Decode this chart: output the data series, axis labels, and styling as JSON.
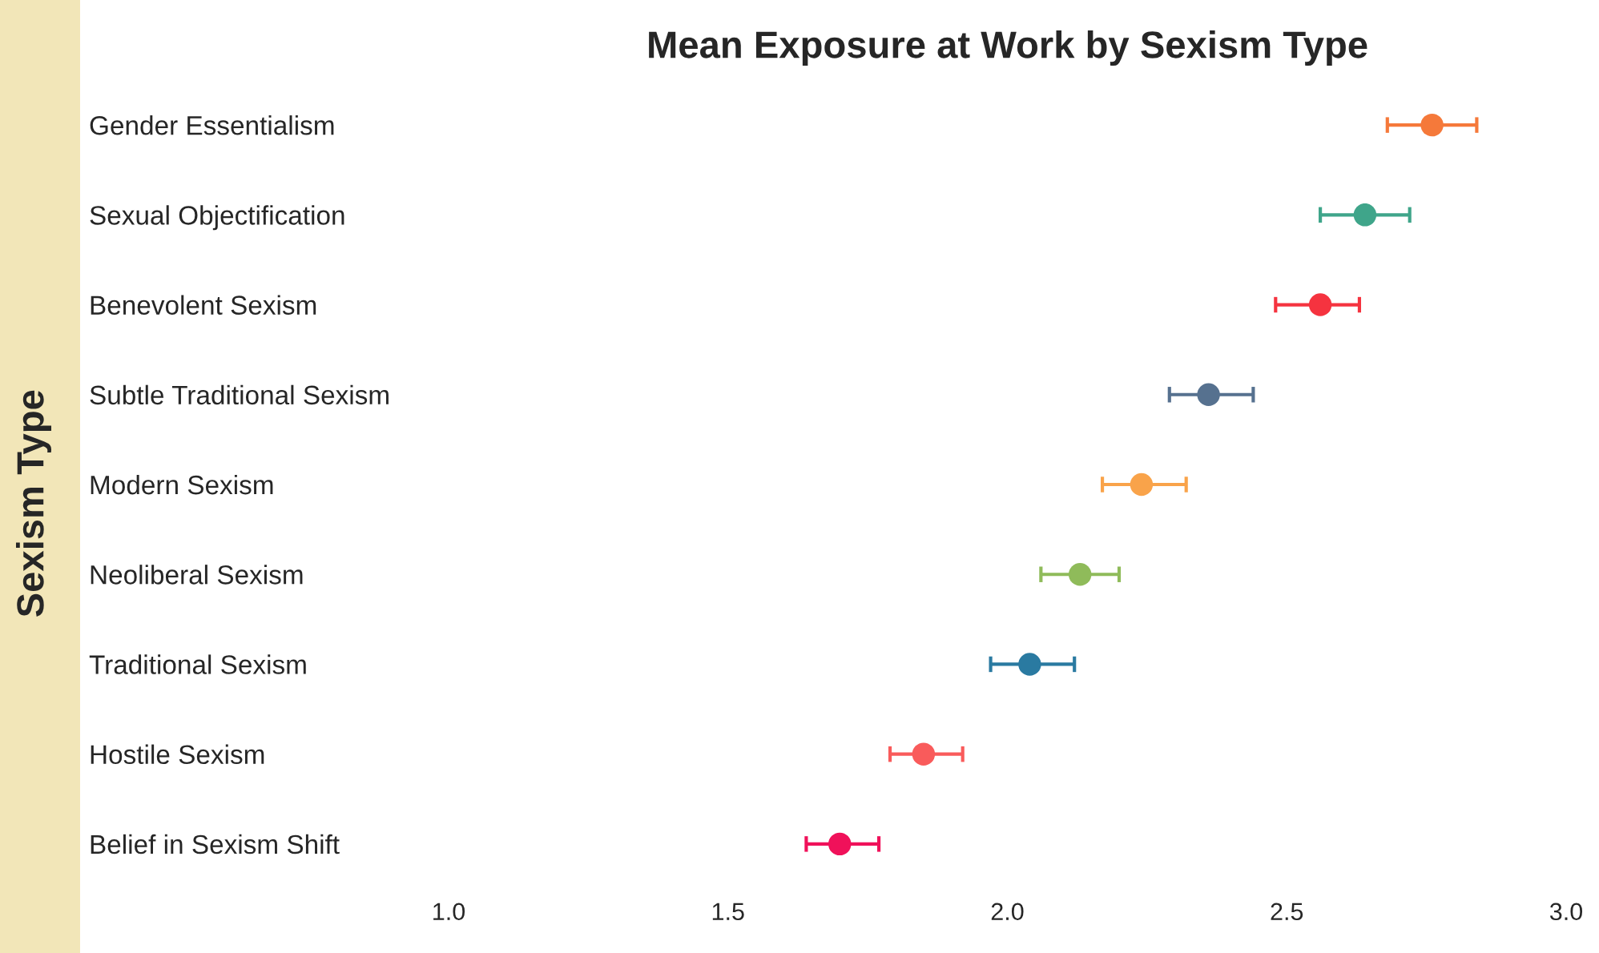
{
  "chart_data": {
    "type": "scatter",
    "orientation": "horizontal",
    "title": "Mean Exposure at Work by Sexism Type",
    "ylabel": "Sexism Type",
    "categories": [
      "Gender Essentialism",
      "Sexual Objectification",
      "Benevolent Sexism",
      "Subtle Traditional Sexism",
      "Modern Sexism",
      "Neoliberal Sexism",
      "Traditional Sexism",
      "Hostile Sexism",
      "Belief in Sexism Shift"
    ],
    "values": [
      2.76,
      2.64,
      2.56,
      2.36,
      2.24,
      2.13,
      2.04,
      1.85,
      1.7
    ],
    "errors": [
      [
        2.68,
        2.84
      ],
      [
        2.56,
        2.72
      ],
      [
        2.48,
        2.63
      ],
      [
        2.29,
        2.44
      ],
      [
        2.17,
        2.32
      ],
      [
        2.06,
        2.2
      ],
      [
        1.97,
        2.12
      ],
      [
        1.79,
        1.92
      ],
      [
        1.64,
        1.77
      ]
    ],
    "colors": [
      "#f5793a",
      "#3fa58a",
      "#f5333f",
      "#56718f",
      "#f9a34a",
      "#8fbb5a",
      "#2a7aa1",
      "#f95b5b",
      "#f0115a"
    ],
    "marker": "circle",
    "xlim": [
      1.0,
      3.0
    ],
    "xticks": [
      {
        "value": 1.0,
        "label": "1.0"
      },
      {
        "value": 1.5,
        "label": "1.5"
      },
      {
        "value": 2.0,
        "label": "2.0"
      },
      {
        "value": 2.5,
        "label": "2.5"
      },
      {
        "value": 3.0,
        "label": "3.0"
      }
    ],
    "grid": false,
    "legend": false
  }
}
